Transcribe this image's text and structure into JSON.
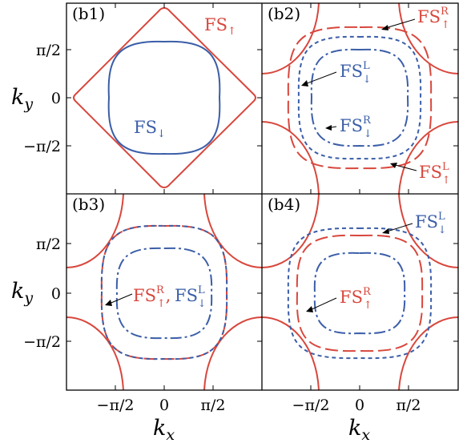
{
  "colors": {
    "red": "#d8473d",
    "blue": "#3b5ea8",
    "frame": "#000000"
  },
  "axes": {
    "x_label": "k",
    "x_label_sub": "x",
    "y_label": "k",
    "y_label_sub": "y",
    "x_ticks": [
      "−π/2",
      "0",
      "π/2"
    ],
    "y_ticks": [
      "π/2",
      "0",
      "−π/2"
    ]
  },
  "panels": [
    {
      "label": "(b1)",
      "curves": [
        {
          "color": "red",
          "style": "solid",
          "shape": "diamond"
        },
        {
          "color": "blue",
          "style": "solid",
          "shape": "rounded-square-large"
        }
      ],
      "annotations": [
        {
          "base": "FS",
          "sup": "",
          "sub": "↑",
          "color": "red"
        },
        {
          "base": "FS",
          "sup": "",
          "sub": "↓",
          "color": "blue"
        }
      ]
    },
    {
      "label": "(b2)",
      "curves": [
        {
          "color": "red",
          "style": "solid",
          "shape": "corner-arcs"
        },
        {
          "color": "red",
          "style": "long-dash",
          "shape": "rounded-square-outer"
        },
        {
          "color": "blue",
          "style": "short-dash",
          "shape": "rounded-square-mid"
        },
        {
          "color": "blue",
          "style": "dash-dot",
          "shape": "rounded-square-inner"
        }
      ],
      "annotations": [
        {
          "base": "FS",
          "sup": "R",
          "sub": "↑",
          "color": "red"
        },
        {
          "base": "FS",
          "sup": "L",
          "sub": "↓",
          "color": "blue"
        },
        {
          "base": "FS",
          "sup": "R",
          "sub": "↓",
          "color": "blue"
        },
        {
          "base": "FS",
          "sup": "L",
          "sub": "↑",
          "color": "red"
        }
      ]
    },
    {
      "label": "(b3)",
      "curves": [
        {
          "color": "red",
          "style": "solid",
          "shape": "corner-arcs"
        },
        {
          "color": "red",
          "style": "long-dash",
          "shape": "rounded-square-outer"
        },
        {
          "color": "blue",
          "style": "short-dash",
          "shape": "rounded-square-outer"
        },
        {
          "color": "blue",
          "style": "dash-dot",
          "shape": "rounded-square-inner"
        }
      ],
      "annotations": [
        {
          "base": "FS",
          "sup": "R",
          "sub": "↑",
          "color": "red",
          "joiner": ","
        },
        {
          "base": "FS",
          "sup": "L",
          "sub": "↓",
          "color": "blue"
        }
      ]
    },
    {
      "label": "(b4)",
      "curves": [
        {
          "color": "red",
          "style": "solid",
          "shape": "corner-arcs"
        },
        {
          "color": "blue",
          "style": "short-dash",
          "shape": "rounded-square-outer"
        },
        {
          "color": "red",
          "style": "long-dash",
          "shape": "rounded-square-mid"
        },
        {
          "color": "blue",
          "style": "dash-dot",
          "shape": "rounded-square-inner"
        }
      ],
      "annotations": [
        {
          "base": "FS",
          "sup": "L",
          "sub": "↓",
          "color": "blue"
        },
        {
          "base": "FS",
          "sup": "R",
          "sub": "↑",
          "color": "red"
        }
      ]
    }
  ]
}
